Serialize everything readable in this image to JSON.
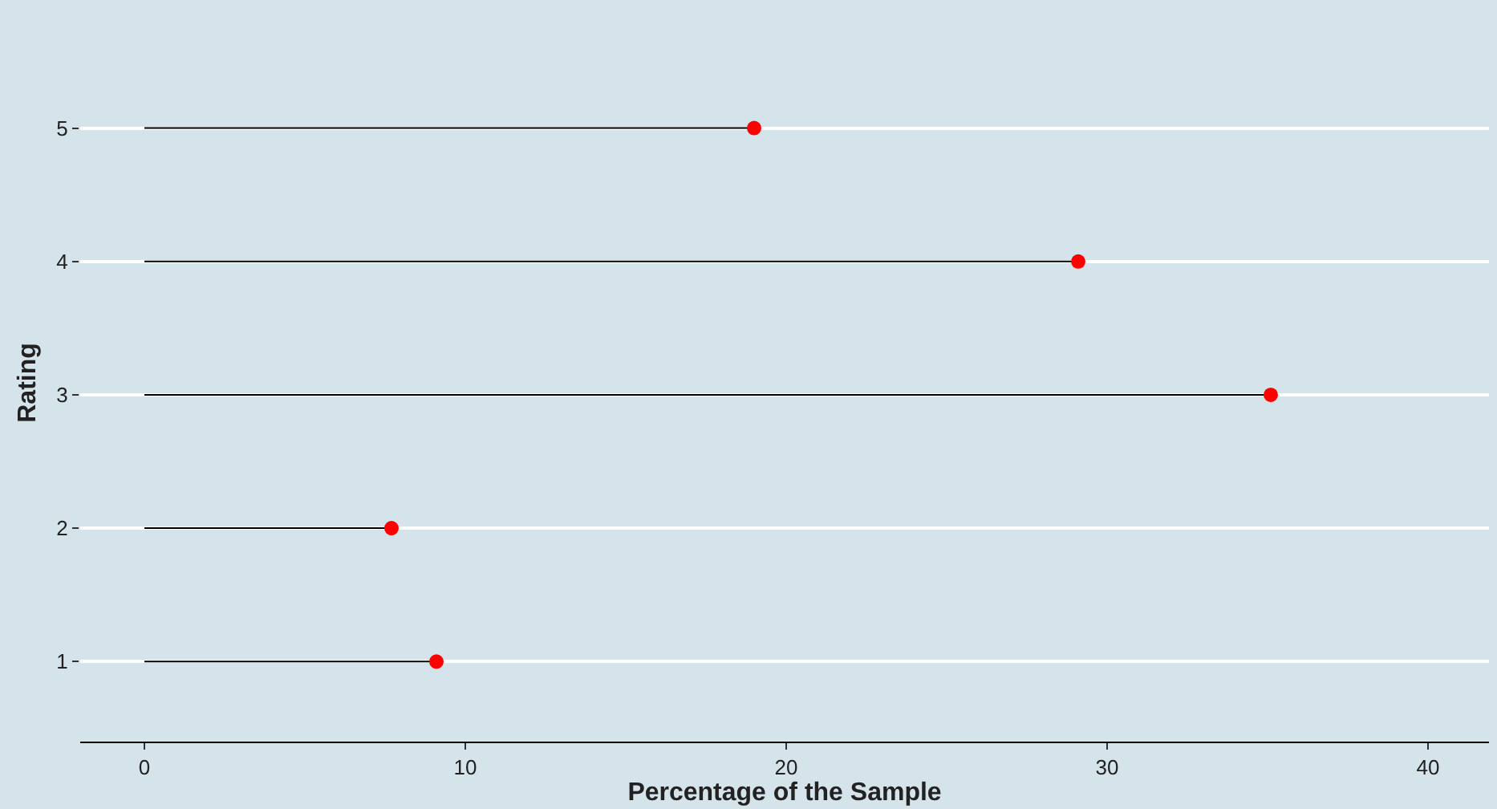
{
  "chart_data": {
    "type": "lollipop",
    "orientation": "horizontal",
    "xlabel": "Percentage of the Sample",
    "ylabel": "Rating",
    "categories": [
      "5",
      "4",
      "3",
      "2",
      "1"
    ],
    "series": [
      {
        "color": "#ff0000",
        "values": [
          19.0,
          29.1,
          35.1,
          7.7,
          9.1
        ]
      }
    ],
    "xlim": [
      -2,
      41.9
    ],
    "xticks": [
      0,
      10,
      20,
      30,
      40
    ],
    "grid": "y",
    "marker": "circle"
  }
}
